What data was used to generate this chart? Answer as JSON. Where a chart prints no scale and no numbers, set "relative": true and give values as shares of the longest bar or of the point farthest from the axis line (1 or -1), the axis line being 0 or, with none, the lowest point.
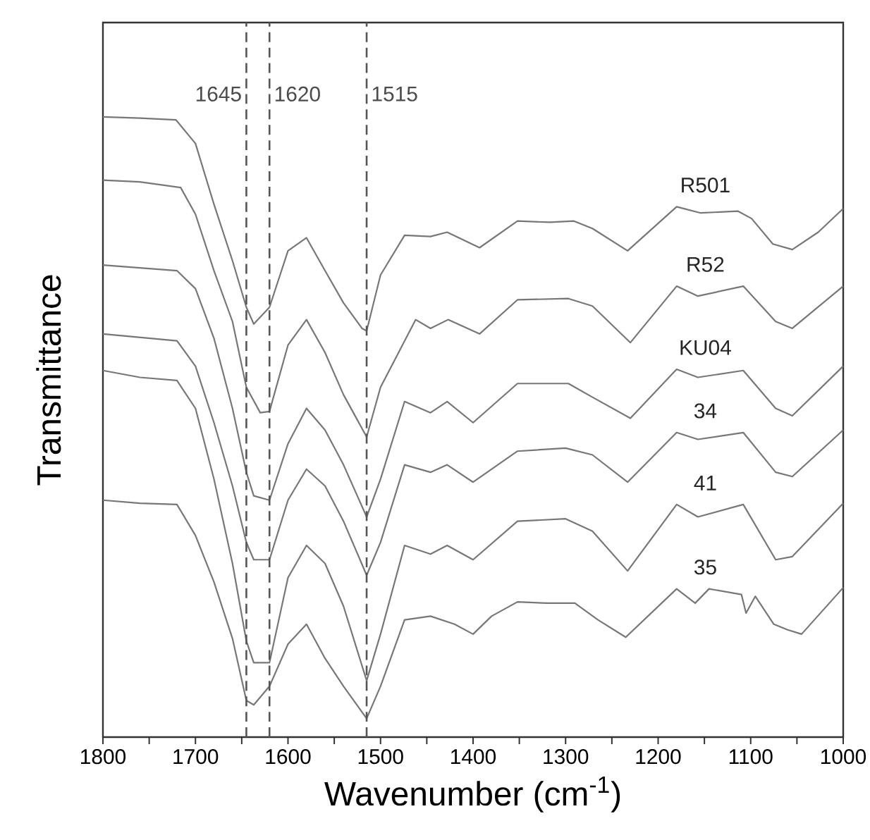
{
  "chart_data": {
    "type": "line",
    "relative": true,
    "xlabel": "Wavenumber (cm$^{-1}$)",
    "ylabel": "Transmittance",
    "xlim": [
      1800,
      1000
    ],
    "xticks": [
      1800,
      {
        "value": 1750,
        "label": null
      },
      1700,
      {
        "value": 1650,
        "label": null
      },
      1600,
      {
        "value": 1550,
        "label": null
      },
      1500,
      {
        "value": 1450,
        "label": null
      },
      1400,
      {
        "value": 1350,
        "label": null
      },
      1300,
      {
        "value": 1250,
        "label": null
      },
      1200,
      {
        "value": 1150,
        "label": null
      },
      1100,
      {
        "value": 1050,
        "label": null
      },
      1000
    ],
    "series": [
      {
        "name": "R501",
        "color": "#777777",
        "x": [
          1800,
          1760,
          1721,
          1700,
          1680,
          1660,
          1645,
          1637,
          1620,
          1600,
          1580,
          1560,
          1540,
          1520,
          1515,
          1500,
          1474,
          1446,
          1428,
          1393,
          1352,
          1317,
          1291,
          1271,
          1233,
          1180,
          1154,
          1114,
          1099,
          1076,
          1055,
          1027,
          1000
        ],
        "values": [
          1.0,
          0.998,
          0.995,
          0.957,
          0.859,
          0.768,
          0.693,
          0.666,
          0.693,
          0.784,
          0.805,
          0.752,
          0.7,
          0.659,
          0.655,
          0.745,
          0.809,
          0.807,
          0.814,
          0.789,
          0.832,
          0.83,
          0.832,
          0.82,
          0.784,
          0.855,
          0.845,
          0.848,
          0.836,
          0.795,
          0.786,
          0.814,
          0.852
        ]
      },
      {
        "name": "R52",
        "color": "#777777",
        "x": [
          1800,
          1760,
          1716,
          1700,
          1680,
          1660,
          1645,
          1630,
          1620,
          1600,
          1580,
          1560,
          1540,
          1515,
          1500,
          1462,
          1446,
          1427,
          1393,
          1352,
          1297,
          1271,
          1230,
          1180,
          1157,
          1108,
          1073,
          1055,
          1000
        ],
        "values": [
          0.898,
          0.895,
          0.886,
          0.843,
          0.752,
          0.67,
          0.564,
          0.523,
          0.525,
          0.632,
          0.673,
          0.62,
          0.552,
          0.484,
          0.564,
          0.673,
          0.659,
          0.673,
          0.65,
          0.705,
          0.707,
          0.695,
          0.636,
          0.727,
          0.711,
          0.727,
          0.67,
          0.659,
          0.727
        ]
      },
      {
        "name": "KU04",
        "color": "#777777",
        "x": [
          1800,
          1720,
          1700,
          1680,
          1660,
          1645,
          1637,
          1620,
          1600,
          1580,
          1560,
          1540,
          1515,
          1500,
          1474,
          1446,
          1428,
          1400,
          1352,
          1297,
          1271,
          1230,
          1180,
          1157,
          1108,
          1073,
          1055,
          1000
        ],
        "values": [
          0.761,
          0.752,
          0.723,
          0.643,
          0.53,
          0.427,
          0.389,
          0.382,
          0.473,
          0.53,
          0.495,
          0.439,
          0.355,
          0.416,
          0.541,
          0.523,
          0.541,
          0.507,
          0.57,
          0.57,
          0.548,
          0.514,
          0.593,
          0.58,
          0.591,
          0.53,
          0.518,
          0.598
        ]
      },
      {
        "name": "34",
        "color": "#777777",
        "x": [
          1800,
          1720,
          1700,
          1680,
          1660,
          1645,
          1637,
          1620,
          1600,
          1580,
          1560,
          1540,
          1515,
          1500,
          1474,
          1446,
          1428,
          1400,
          1352,
          1300,
          1271,
          1233,
          1180,
          1157,
          1108,
          1073,
          1055,
          1000
        ],
        "values": [
          0.65,
          0.639,
          0.598,
          0.507,
          0.405,
          0.314,
          0.286,
          0.286,
          0.382,
          0.432,
          0.405,
          0.348,
          0.261,
          0.314,
          0.439,
          0.427,
          0.439,
          0.411,
          0.461,
          0.466,
          0.455,
          0.411,
          0.491,
          0.48,
          0.491,
          0.427,
          0.42,
          0.495
        ]
      },
      {
        "name": "41",
        "color": "#777777",
        "x": [
          1800,
          1760,
          1720,
          1700,
          1680,
          1660,
          1645,
          1637,
          1620,
          1600,
          1580,
          1560,
          1540,
          1515,
          1500,
          1474,
          1446,
          1428,
          1400,
          1352,
          1300,
          1271,
          1233,
          1180,
          1157,
          1108,
          1073,
          1055,
          1000
        ],
        "values": [
          0.591,
          0.58,
          0.575,
          0.53,
          0.416,
          0.28,
          0.155,
          0.12,
          0.12,
          0.257,
          0.309,
          0.28,
          0.211,
          0.091,
          0.166,
          0.309,
          0.295,
          0.309,
          0.286,
          0.348,
          0.352,
          0.332,
          0.268,
          0.375,
          0.355,
          0.375,
          0.286,
          0.291,
          0.377
        ]
      },
      {
        "name": "35",
        "color": "#777777",
        "x": [
          1800,
          1760,
          1720,
          1700,
          1680,
          1660,
          1645,
          1637,
          1620,
          1600,
          1580,
          1560,
          1540,
          1515,
          1500,
          1474,
          1446,
          1420,
          1400,
          1380,
          1352,
          1320,
          1290,
          1265,
          1235,
          1180,
          1160,
          1145,
          1110,
          1105,
          1095,
          1075,
          1060,
          1045,
          1000
        ],
        "values": [
          0.382,
          0.377,
          0.375,
          0.325,
          0.25,
          0.159,
          0.059,
          0.052,
          0.082,
          0.15,
          0.182,
          0.127,
          0.082,
          0.03,
          0.082,
          0.189,
          0.195,
          0.182,
          0.166,
          0.195,
          0.218,
          0.216,
          0.216,
          0.189,
          0.161,
          0.239,
          0.216,
          0.239,
          0.23,
          0.2,
          0.227,
          0.182,
          0.173,
          0.166,
          0.241
        ]
      }
    ],
    "ref_lines": [
      {
        "axis": "x",
        "value": 1645,
        "label": "1645",
        "color": "#555555",
        "line_style": "dashed"
      },
      {
        "axis": "x",
        "value": 1620,
        "label": "1620",
        "color": "#555555",
        "line_style": "dashed"
      },
      {
        "axis": "x",
        "value": 1515,
        "label": "1515",
        "color": "#555555",
        "line_style": "dashed"
      }
    ]
  }
}
